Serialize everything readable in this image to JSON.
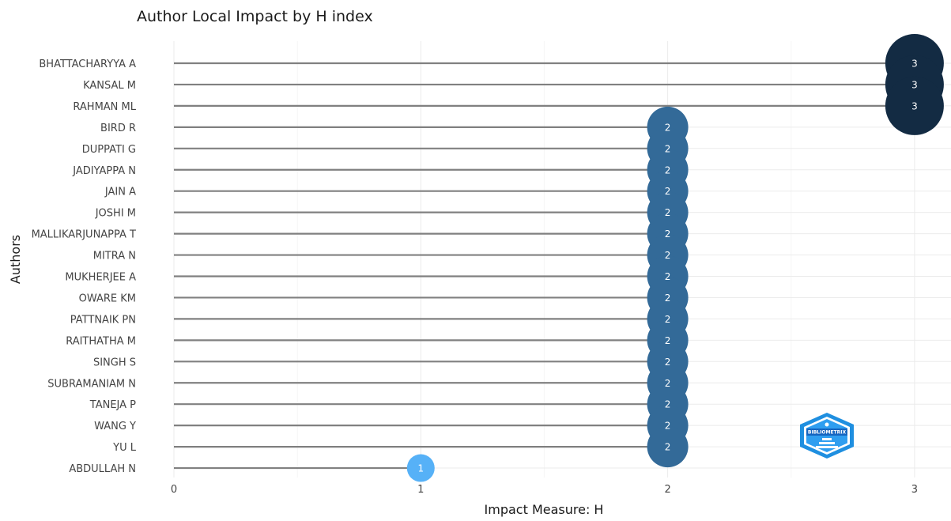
{
  "chart_data": {
    "type": "scatter",
    "subtype": "lollipop",
    "title": "Author Local Impact by H index",
    "xlabel": "Impact Measure: H",
    "ylabel": "Authors",
    "xlim": [
      0,
      3.15
    ],
    "xticks": [
      0,
      1,
      2,
      3
    ],
    "grid": true,
    "legend": "none",
    "categories": [
      "BHATTACHARYYA A",
      "KANSAL M",
      "RAHMAN ML",
      "BIRD R",
      "DUPPATI G",
      "JADIYAPPA N",
      "JAIN A",
      "JOSHI M",
      "MALLIKARJUNAPPA T",
      "MITRA N",
      "MUKHERJEE A",
      "OWARE KM",
      "PATTNAIK PN",
      "RAITHATHA M",
      "SINGH S",
      "SUBRAMANIAM N",
      "TANEJA P",
      "WANG Y",
      "YU L",
      "ABDULLAH N"
    ],
    "values": [
      3,
      3,
      3,
      2,
      2,
      2,
      2,
      2,
      2,
      2,
      2,
      2,
      2,
      2,
      2,
      2,
      2,
      2,
      2,
      1
    ],
    "colors": {
      "h3": "#132b43",
      "h2": "#336a98",
      "h1": "#56b1f7",
      "stem": "#808080",
      "grid": "#ebebeb",
      "text": "#444444"
    }
  },
  "watermark": {
    "text": "BIBLIOMETRIX",
    "icon": "bibliometrix-logo-icon"
  }
}
